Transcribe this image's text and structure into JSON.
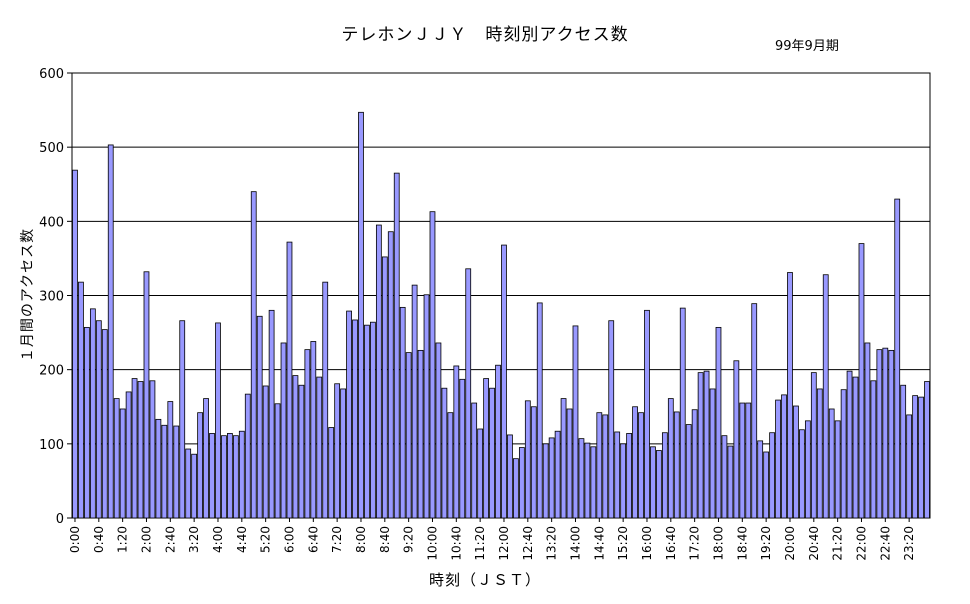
{
  "chart_data": {
    "type": "bar",
    "title": "テレホンＪＪＹ　時刻別アクセス数",
    "subtitle": "99年9月期",
    "xlabel": "時刻（ＪＳＴ）",
    "ylabel": "１月間のアクセス数",
    "ylim": [
      0,
      600
    ],
    "yticks": [
      0,
      100,
      200,
      300,
      400,
      500,
      600
    ],
    "grid": true,
    "bar_color": "#9999ff",
    "x_tick_labels": [
      "0:00",
      "0:40",
      "1:20",
      "2:00",
      "2:40",
      "3:20",
      "4:00",
      "4:40",
      "5:20",
      "6:00",
      "6:40",
      "7:20",
      "8:00",
      "8:40",
      "9:20",
      "10:00",
      "10:40",
      "11:20",
      "12:00",
      "12:40",
      "13:20",
      "14:00",
      "14:40",
      "15:20",
      "16:00",
      "16:40",
      "17:20",
      "18:00",
      "18:40",
      "19:20",
      "20:00",
      "20:40",
      "21:20",
      "22:00",
      "22:40",
      "23:20"
    ],
    "categories_note": "144 bars, one per 10 minutes from 0:00 to 23:50",
    "values": [
      469,
      318,
      257,
      282,
      266,
      254,
      503,
      161,
      147,
      170,
      188,
      184,
      332,
      185,
      133,
      125,
      157,
      124,
      266,
      93,
      86,
      142,
      161,
      114,
      263,
      111,
      114,
      111,
      117,
      167,
      440,
      272,
      178,
      280,
      154,
      236,
      372,
      192,
      179,
      227,
      238,
      190,
      318,
      122,
      181,
      174,
      279,
      267,
      547,
      260,
      264,
      395,
      352,
      386,
      465,
      284,
      223,
      314,
      226,
      301,
      413,
      236,
      175,
      142,
      205,
      187,
      336,
      155,
      120,
      188,
      175,
      206,
      368,
      112,
      80,
      95,
      158,
      150,
      290,
      100,
      108,
      117,
      161,
      147,
      259,
      107,
      101,
      96,
      142,
      139,
      266,
      116,
      100,
      114,
      150,
      142,
      280,
      96,
      91,
      115,
      161,
      143,
      283,
      126,
      146,
      196,
      198,
      174,
      257,
      111,
      97,
      212,
      155,
      155,
      289,
      104,
      89,
      115,
      159,
      166,
      331,
      151,
      119,
      131,
      196,
      174,
      328,
      147,
      131,
      173,
      198,
      190,
      370,
      236,
      185,
      227,
      229,
      226,
      430,
      179,
      139,
      165,
      163,
      184
    ]
  }
}
